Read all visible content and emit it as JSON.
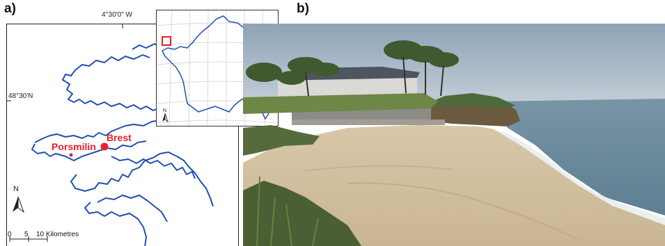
{
  "figure": {
    "panel_a_label": "a)",
    "panel_b_label": "b)"
  },
  "map": {
    "longitude_label": "4°30'0\" W",
    "latitude_label": "48°30'N",
    "places": {
      "brest": "Brest",
      "porsmilin": "Porsmilin"
    },
    "north_arrow_label": "N",
    "scale": {
      "ticks": [
        "0",
        "5",
        "10 Kilometres"
      ]
    },
    "colors": {
      "coastline": "#1f4fb0",
      "places": "#e8212b"
    }
  },
  "inset": {
    "north_arrow_label": "N",
    "colors": {
      "outline": "#1f4fb0",
      "highlight": "#e8212b",
      "graticule": "#cfcfcf"
    }
  },
  "photo": {
    "colors": {
      "sky": "#a9b9c8",
      "sea": "#6d8ea3",
      "sand": "#d9c9aa",
      "vegetation": "#4f6a3a"
    }
  }
}
